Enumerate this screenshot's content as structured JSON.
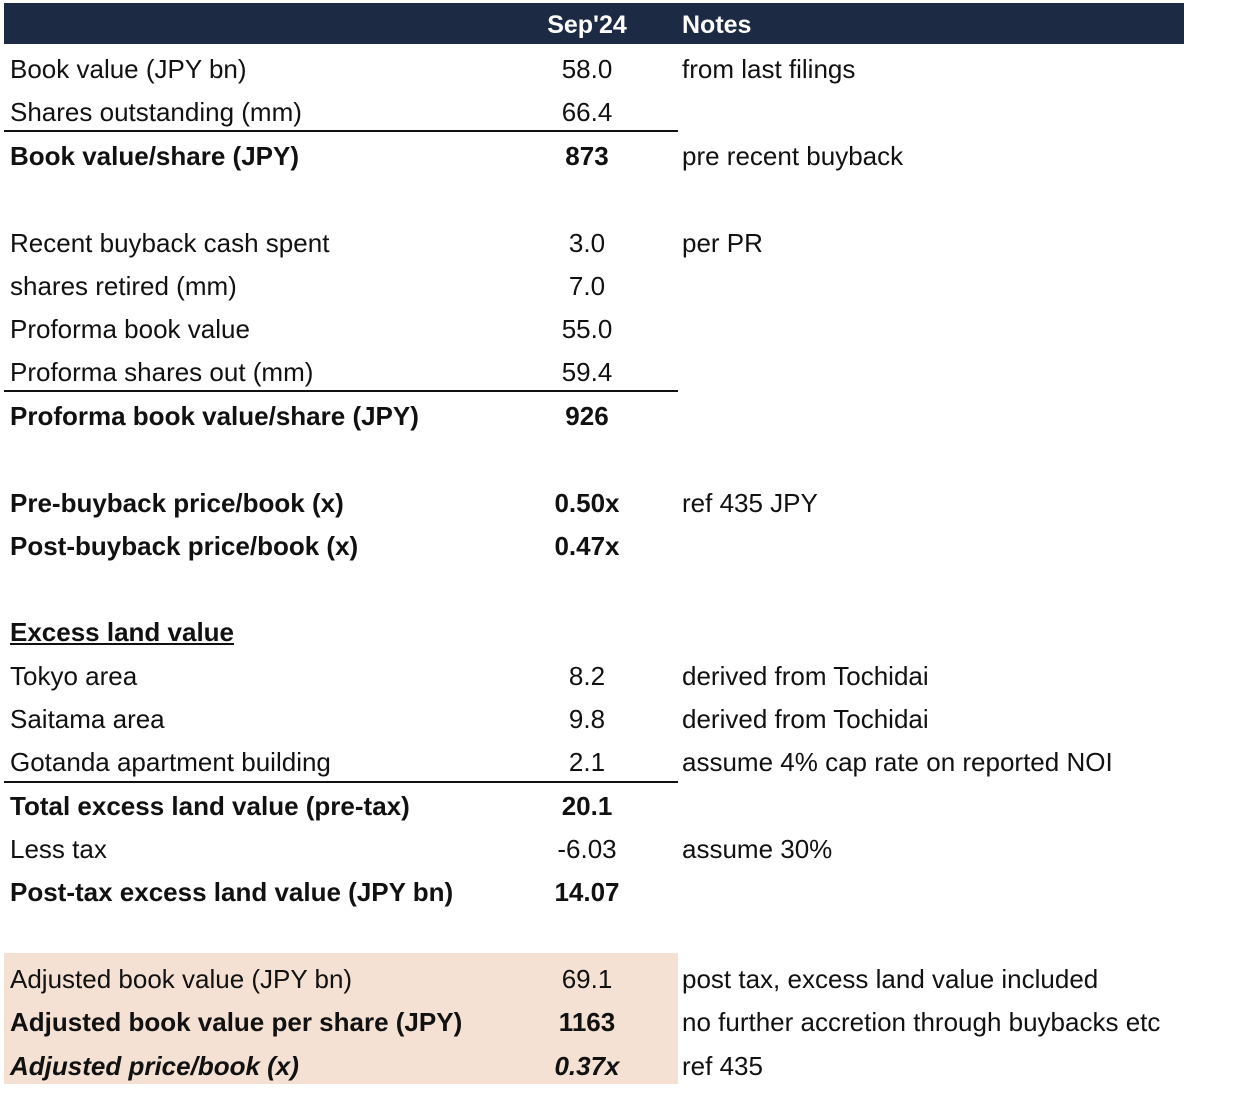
{
  "header": {
    "period": "Sep'24",
    "notes": "Notes"
  },
  "rows": [
    {
      "label": "Book value (JPY bn)",
      "value": "58.0",
      "note": "from last filings"
    },
    {
      "label": "Shares outstanding (mm)",
      "value": "66.4",
      "note": ""
    },
    {
      "label": "Book value/share (JPY)",
      "value": "873",
      "note": "pre recent buyback"
    },
    {
      "label": "Recent buyback cash spent",
      "value": "3.0",
      "note": "per PR"
    },
    {
      "label": "shares retired (mm)",
      "value": "7.0",
      "note": ""
    },
    {
      "label": "Proforma book value",
      "value": "55.0",
      "note": ""
    },
    {
      "label": "Proforma shares out (mm)",
      "value": "59.4",
      "note": ""
    },
    {
      "label": "Proforma book value/share (JPY)",
      "value": "926",
      "note": ""
    },
    {
      "label": "Pre-buyback price/book (x)",
      "value": "0.50x",
      "note": "ref 435 JPY"
    },
    {
      "label": "Post-buyback price/book (x)",
      "value": "0.47x",
      "note": ""
    },
    {
      "label": "Excess land value",
      "value": "",
      "note": ""
    },
    {
      "label": "Tokyo area",
      "value": "8.2",
      "note": "derived from Tochidai"
    },
    {
      "label": "Saitama area",
      "value": "9.8",
      "note": "derived from Tochidai"
    },
    {
      "label": "Gotanda apartment building",
      "value": "2.1",
      "note": "assume 4% cap rate on reported NOI"
    },
    {
      "label": "Total excess land value (pre-tax)",
      "value": "20.1",
      "note": ""
    },
    {
      "label": "Less tax",
      "value": "-6.03",
      "note": "assume 30%"
    },
    {
      "label": "Post-tax excess land value (JPY bn)",
      "value": "14.07",
      "note": ""
    },
    {
      "label": "Adjusted book value (JPY bn)",
      "value": "69.1",
      "note": "post tax, excess land value included"
    },
    {
      "label": "Adjusted book value per share (JPY)",
      "value": "1163",
      "note": "no further accretion through buybacks etc"
    },
    {
      "label": "Adjusted price/book (x)",
      "value": "0.37x",
      "note": "ref 435"
    }
  ],
  "colors": {
    "header_bg": "#1c2a44",
    "highlight_bg": "#f4e1d3"
  }
}
